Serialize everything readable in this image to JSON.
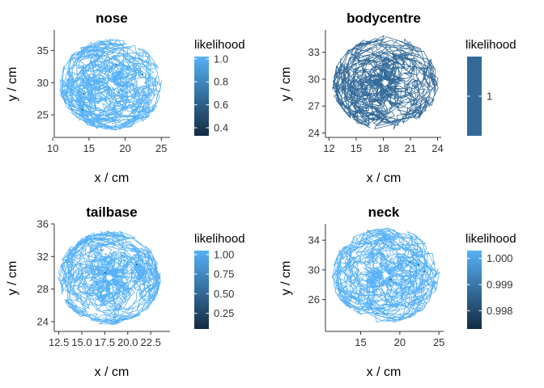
{
  "colors": {
    "high": "#56B1F7",
    "low": "#132B43",
    "body_track": "#336A98",
    "axis": "#333333"
  },
  "chart_data": [
    {
      "type": "line",
      "title": "nose",
      "xlabel": "x / cm",
      "ylabel": "y / cm",
      "xlim": [
        10.2,
        26.2
      ],
      "ylim": [
        21.5,
        38.2
      ],
      "xticks": [
        10,
        15,
        20,
        25
      ],
      "yticks": [
        25,
        30,
        35
      ],
      "track": {
        "center": [
          18.1,
          29.7
        ],
        "radius": [
          7.3,
          7.1
        ]
      },
      "legend": {
        "title": "likelihood",
        "range": [
          0.33,
          1.02
        ],
        "ticks": [
          "0.4",
          "0.6",
          "0.8",
          "1.0"
        ],
        "tick_values": [
          0.4,
          0.6,
          0.8,
          1.0
        ],
        "position": "right"
      }
    },
    {
      "type": "line",
      "title": "bodycentre",
      "xlabel": "x / cm",
      "ylabel": "y / cm",
      "xlim": [
        11.6,
        24.4
      ],
      "ylim": [
        23.5,
        35.5
      ],
      "xticks": [
        12,
        15,
        18,
        21,
        24
      ],
      "yticks": [
        24,
        27,
        30,
        33
      ],
      "track": {
        "center": [
          18.2,
          29.6
        ],
        "radius": [
          5.9,
          5.3
        ]
      },
      "legend": {
        "title": "likelihood",
        "range": [
          0.5,
          1.5
        ],
        "ticks": [
          "1"
        ],
        "tick_values": [
          1
        ],
        "position": "right",
        "single_color": true
      }
    },
    {
      "type": "line",
      "title": "tailbase",
      "xlabel": "x / cm",
      "ylabel": "y / cm",
      "xlim": [
        12.0,
        24.6
      ],
      "ylim": [
        22.8,
        36.0
      ],
      "xticks": [
        12.5,
        15.0,
        17.5,
        20.0,
        22.5
      ],
      "xtick_labels": [
        "12.5",
        "15.0",
        "17.5",
        "20.0",
        "22.5"
      ],
      "yticks": [
        24,
        28,
        32,
        36
      ],
      "track": {
        "center": [
          18.0,
          29.4
        ],
        "radius": [
          5.6,
          5.8
        ]
      },
      "legend": {
        "title": "likelihood",
        "range": [
          0.05,
          1.05
        ],
        "ticks": [
          "0.25",
          "0.50",
          "0.75",
          "1.00"
        ],
        "tick_values": [
          0.25,
          0.5,
          0.75,
          1.0
        ],
        "position": "right"
      }
    },
    {
      "type": "line",
      "title": "neck",
      "xlabel": "x / cm",
      "ylabel": "y / cm",
      "xlim": [
        10.5,
        25.6
      ],
      "ylim": [
        21.7,
        36.2
      ],
      "xticks": [
        15,
        20,
        25
      ],
      "yticks": [
        26,
        30,
        34
      ],
      "track": {
        "center": [
          18.2,
          29.3
        ],
        "radius": [
          6.9,
          6.5
        ]
      },
      "legend": {
        "title": "likelihood",
        "range": [
          0.9973,
          1.0003
        ],
        "ticks": [
          "0.998",
          "0.999",
          "1.000"
        ],
        "tick_values": [
          0.998,
          0.999,
          1.0
        ],
        "position": "right"
      }
    }
  ]
}
